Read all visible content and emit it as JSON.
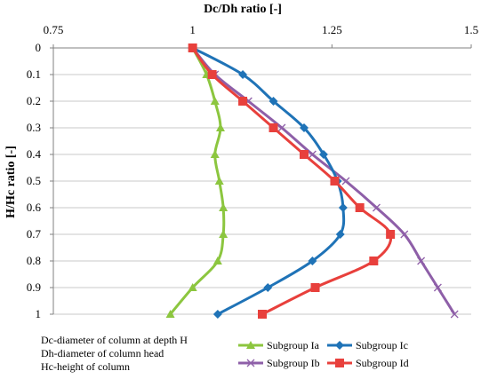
{
  "chart_data": {
    "type": "line",
    "xlabel": "Dc/Dh ratio [-]",
    "ylabel": "H/Hc ratio [-]",
    "xlim": [
      0.75,
      1.5
    ],
    "ylim": [
      0,
      1
    ],
    "x_ticks": [
      "0.75",
      "1",
      "1.25",
      "1.5"
    ],
    "x_tick_values": [
      0.75,
      1,
      1.25,
      1.5
    ],
    "y_ticks": [
      "0",
      "0.1",
      "0.2",
      "0.3",
      "0.4",
      "0.5",
      "0.6",
      "0.7",
      "0.8",
      "0.9",
      "1"
    ],
    "y_tick_values": [
      0,
      0.1,
      0.2,
      0.3,
      0.4,
      0.5,
      0.6,
      0.7,
      0.8,
      0.9,
      1
    ],
    "x_axis_position": "top",
    "y_axis_inverted": true,
    "grid": "horizontal",
    "legend_position": "bottom",
    "notes": [
      "Dc-diameter of column at depth H",
      "Dh-diameter of column head",
      "Hc-height of column"
    ],
    "series": [
      {
        "name": "Subgroup Ia",
        "color": "#8cc63f",
        "marker": "triangle",
        "x": [
          1.0,
          1.025,
          1.04,
          1.05,
          1.04,
          1.048,
          1.055,
          1.055,
          1.045,
          1.0,
          0.96
        ],
        "y": [
          0,
          0.1,
          0.2,
          0.3,
          0.4,
          0.5,
          0.6,
          0.7,
          0.8,
          0.9,
          1
        ]
      },
      {
        "name": "Subgroup Ib",
        "color": "#8e5fa8",
        "marker": "x",
        "x": [
          1.0,
          1.04,
          1.1,
          1.16,
          1.215,
          1.275,
          1.33,
          1.38,
          1.41,
          1.44,
          1.47
        ],
        "y": [
          0,
          0.1,
          0.2,
          0.3,
          0.4,
          0.5,
          0.6,
          0.7,
          0.8,
          0.9,
          1
        ]
      },
      {
        "name": "Subgroup Ic",
        "color": "#1f73b7",
        "marker": "diamond",
        "x": [
          1.0,
          1.09,
          1.145,
          1.2,
          1.235,
          1.26,
          1.27,
          1.265,
          1.215,
          1.135,
          1.045
        ],
        "y": [
          0,
          0.1,
          0.2,
          0.3,
          0.4,
          0.5,
          0.6,
          0.7,
          0.8,
          0.9,
          1
        ]
      },
      {
        "name": "Subgroup Id",
        "color": "#e8403c",
        "marker": "square",
        "x": [
          1.0,
          1.035,
          1.09,
          1.145,
          1.2,
          1.255,
          1.3,
          1.355,
          1.325,
          1.22,
          1.125
        ],
        "y": [
          0,
          0.1,
          0.2,
          0.3,
          0.4,
          0.5,
          0.6,
          0.7,
          0.8,
          0.9,
          1
        ]
      }
    ]
  }
}
